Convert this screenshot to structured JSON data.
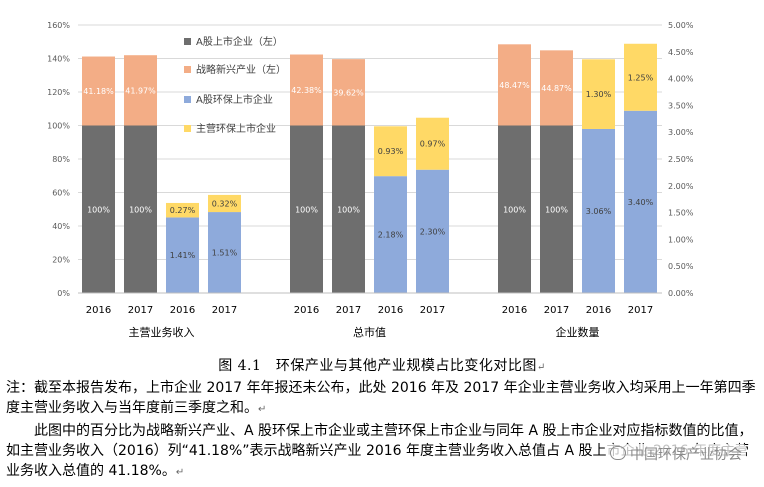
{
  "chart_data": {
    "type": "bar",
    "stacked": true,
    "groups": [
      {
        "label": "主营业务收入",
        "categories": [
          "2016",
          "2017",
          "2016",
          "2017"
        ]
      },
      {
        "label": "总市值",
        "categories": [
          "2016",
          "2017",
          "2016",
          "2017"
        ]
      },
      {
        "label": "企业数量",
        "categories": [
          "2016",
          "2017",
          "2016",
          "2017"
        ]
      }
    ],
    "series": [
      {
        "name": "A股上市企业（左）",
        "color": "#6e6e6e",
        "axis": "left",
        "values": [
          100,
          100,
          null,
          null,
          100,
          100,
          null,
          null,
          100,
          100,
          null,
          null
        ],
        "labels": [
          "100%",
          "100%",
          "",
          "",
          "100%",
          "100%",
          "",
          "",
          "100%",
          "100%",
          "",
          ""
        ]
      },
      {
        "name": "战略新兴产业（左）",
        "color": "#f3ad86",
        "axis": "left",
        "values": [
          41.18,
          41.97,
          null,
          null,
          42.38,
          39.62,
          null,
          null,
          48.47,
          44.87,
          null,
          null
        ],
        "labels": [
          "41.18%",
          "41.97%",
          "",
          "",
          "42.38%",
          "39.62%",
          "",
          "",
          "48.47%",
          "44.87%",
          "",
          ""
        ]
      },
      {
        "name": "A股环保上市企业",
        "color": "#8eaadb",
        "axis": "right",
        "values": [
          null,
          null,
          1.41,
          1.51,
          null,
          null,
          2.18,
          2.3,
          null,
          null,
          3.06,
          3.4
        ],
        "labels": [
          "",
          "",
          "1.41%",
          "1.51%",
          "",
          "",
          "2.18%",
          "2.30%",
          "",
          "",
          "3.06%",
          "3.40%"
        ]
      },
      {
        "name": "主营环保上市企业",
        "color": "#ffd966",
        "axis": "right",
        "values": [
          null,
          null,
          0.27,
          0.32,
          null,
          null,
          0.93,
          0.97,
          null,
          null,
          1.3,
          1.25
        ],
        "labels": [
          "",
          "",
          "0.27%",
          "0.32%",
          "",
          "",
          "0.93%",
          "0.97%",
          "",
          "",
          "1.30%",
          "1.25%"
        ]
      }
    ],
    "y_left": {
      "ylim": [
        0,
        160
      ],
      "ticks": [
        "0%",
        "20%",
        "40%",
        "60%",
        "80%",
        "100%",
        "120%",
        "140%",
        "160%"
      ]
    },
    "y_right": {
      "ylim": [
        0,
        5
      ],
      "ticks": [
        "0.00%",
        "0.50%",
        "1.00%",
        "1.50%",
        "2.00%",
        "2.50%",
        "3.00%",
        "3.50%",
        "4.00%",
        "4.50%",
        "5.00%"
      ]
    },
    "legend": "upper-left",
    "grid": true
  },
  "caption": "图 4.1　环保产业与其他产业规模占比变化对比图",
  "paragraphs": [
    "注：截至本报告发布，上市企业 2017 年年报还未公布，此处 2016 年及 2017 年企业主营业务收入均采用上一年第四季度主营业务收入与当年度前三季度之和。",
    "此图中的百分比为战略新兴产业、A 股环保上市企业或主营环保上市企业与同年 A 股上市企业对应指标数值的比值，如主营业务收入（2016）列“41.18%”表示战略新兴产业 2016 年度主营业务收入总值占 A 股上市企业 2016 年度主营业务收入总值的 41.18%。"
  ],
  "watermark": "中国环保产业协会",
  "marks": {
    "return": "↵"
  }
}
